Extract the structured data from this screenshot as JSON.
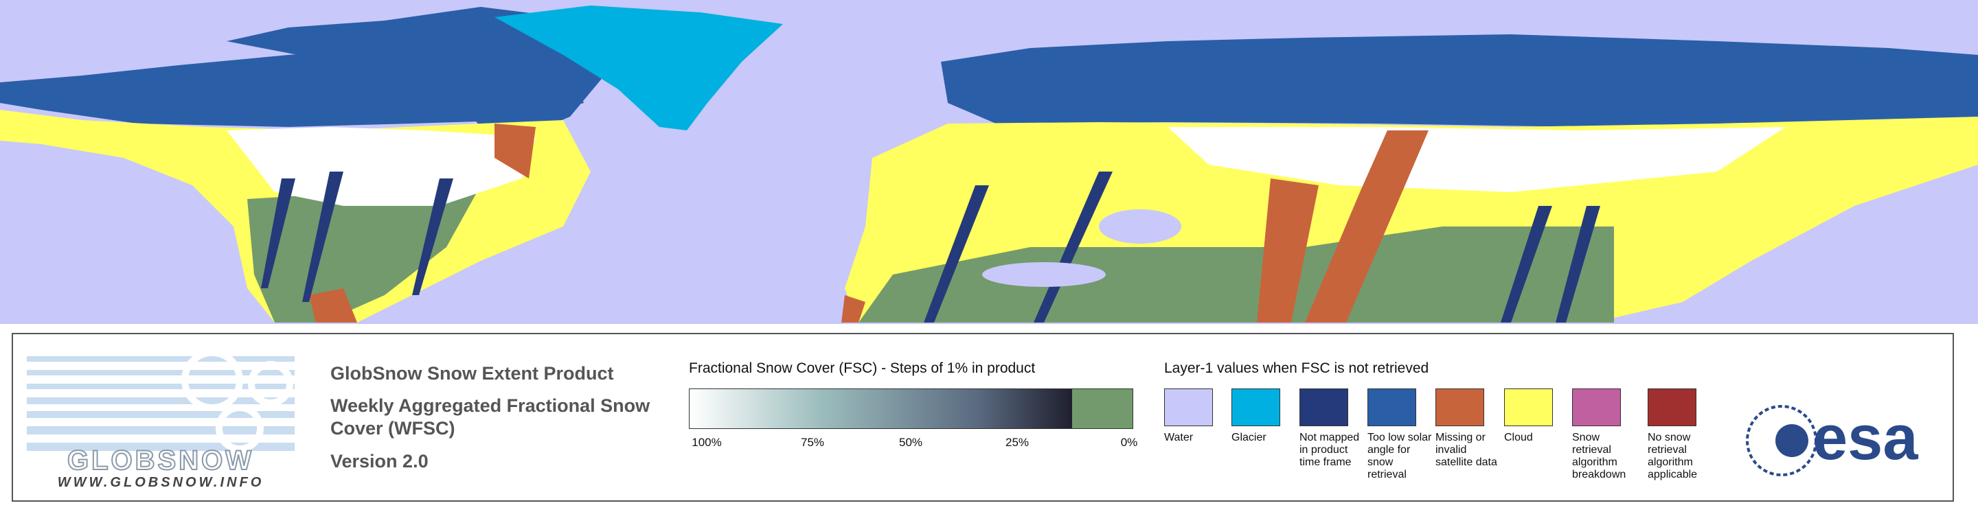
{
  "logo": {
    "name": "GLOBSNOW",
    "url": "WWW.GLOBSNOW.INFO"
  },
  "product": {
    "title": "GlobSnow Snow Extent Product",
    "subtitle": "Weekly Aggregated Fractional Snow Cover (WFSC)",
    "version": "Version 2.0"
  },
  "fsc_legend": {
    "title": "Fractional Snow Cover (FSC) - Steps of 1% in product",
    "ticks": [
      "100%",
      "75%",
      "50%",
      "25%",
      "0%"
    ],
    "no_snow_color": "#739a6c"
  },
  "layer1_legend": {
    "title": "Layer-1 values when FSC is not retrieved",
    "items": [
      {
        "label": "Water",
        "color": "#c8c8fa"
      },
      {
        "label": "Glacier",
        "color": "#00b0e0"
      },
      {
        "label": "Not mapped in product time frame",
        "color": "#253a7a"
      },
      {
        "label": "Too low solar angle for snow retrieval",
        "color": "#2a5fa8"
      },
      {
        "label": "Missing or invalid satellite data",
        "color": "#c8643c"
      },
      {
        "label": "Cloud",
        "color": "#ffff60"
      },
      {
        "label": "Snow retrieval algorithm breakdown",
        "color": "#c060a0"
      },
      {
        "label": "No snow retrieval algorithm applicable",
        "color": "#a03030"
      }
    ]
  },
  "esa_logo": "esa"
}
